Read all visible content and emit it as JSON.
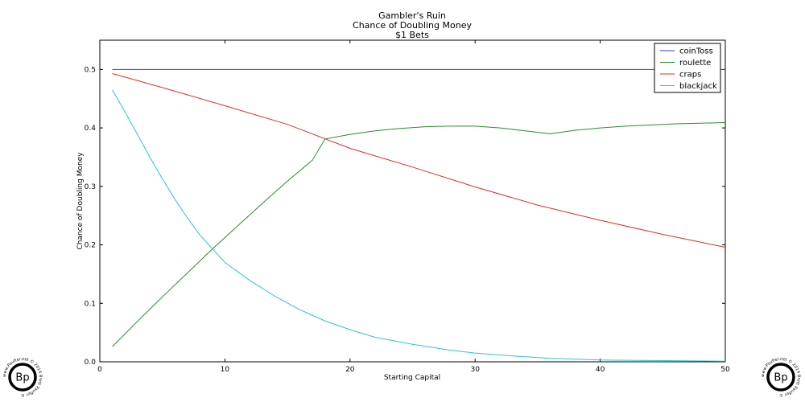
{
  "chart_data": {
    "type": "line",
    "title_lines": [
      "Gambler's Ruin",
      "Chance of Doubling Money",
      "$1 Bets"
    ],
    "xlabel": "Starting Capital",
    "ylabel": "Chance of Doubling Money",
    "xlim": [
      0,
      50
    ],
    "ylim": [
      0,
      0.55
    ],
    "xticks": [
      0,
      10,
      20,
      30,
      40,
      50
    ],
    "yticks": [
      0.0,
      0.1,
      0.2,
      0.3,
      0.4,
      0.5
    ],
    "ytick_labels": [
      "0.0",
      "0.1",
      "0.2",
      "0.3",
      "0.4",
      "0.5"
    ],
    "grid": false,
    "legend_position": "top-right",
    "series": [
      {
        "name": "coinToss",
        "color": "#3a3af0",
        "x": [
          1,
          50
        ],
        "y": [
          0.5,
          0.5
        ]
      },
      {
        "name": "roulette",
        "color": "#2e8b2e",
        "x": [
          1,
          3,
          5,
          7,
          9,
          11,
          13,
          15,
          17,
          18,
          20,
          22,
          24,
          26,
          28,
          30,
          32,
          34,
          36,
          38,
          40,
          42,
          44,
          46,
          48,
          50
        ],
        "y": [
          0.026,
          0.069,
          0.111,
          0.152,
          0.193,
          0.232,
          0.271,
          0.309,
          0.345,
          0.381,
          0.389,
          0.395,
          0.399,
          0.402,
          0.403,
          0.403,
          0.4,
          0.395,
          0.39,
          0.396,
          0.4,
          0.403,
          0.405,
          0.407,
          0.408,
          0.409
        ]
      },
      {
        "name": "craps",
        "color": "#d9302a",
        "x": [
          1,
          5,
          10,
          15,
          20,
          25,
          30,
          35,
          40,
          45,
          50
        ],
        "y": [
          0.493,
          0.469,
          0.438,
          0.406,
          0.365,
          0.333,
          0.299,
          0.268,
          0.242,
          0.218,
          0.196
        ]
      },
      {
        "name": "blackjack",
        "color": "#2bc4cf",
        "x": [
          1,
          2,
          3,
          4,
          5,
          6,
          7,
          8,
          9,
          10,
          12,
          14,
          16,
          18,
          20,
          22,
          25,
          28,
          30,
          33,
          36,
          40,
          45,
          50
        ],
        "y": [
          0.465,
          0.428,
          0.389,
          0.35,
          0.313,
          0.278,
          0.246,
          0.217,
          0.193,
          0.17,
          0.139,
          0.112,
          0.089,
          0.07,
          0.055,
          0.042,
          0.03,
          0.02,
          0.015,
          0.01,
          0.006,
          0.003,
          0.002,
          0.001
        ]
      }
    ]
  },
  "watermark": {
    "initials": "Bp",
    "ring_text": "www.Paufler.net © 2014 Brett Paufler ©"
  }
}
